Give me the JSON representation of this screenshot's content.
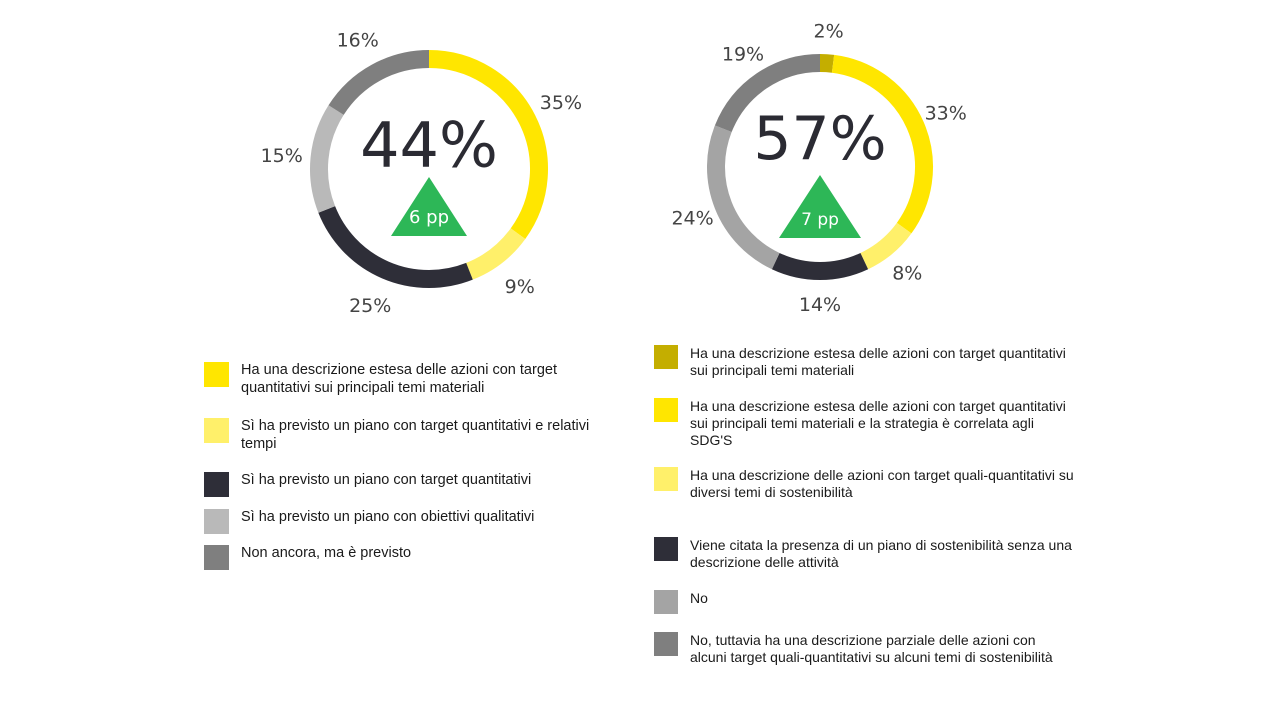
{
  "colors": {
    "olive": "#C4AE00",
    "yellow": "#FFE600",
    "light_yellow": "#FFF06A",
    "dark": "#2E2E38",
    "light_gray": "#B9B9B9",
    "mid_gray": "#A4A4A4",
    "gray": "#7F7F7F",
    "green": "#2DB757",
    "text": "#333333"
  },
  "chart_data": [
    {
      "type": "pie",
      "center_label": "44%",
      "delta_label": "6 pp",
      "delta_direction": "up",
      "slices": [
        {
          "label": "Ha una descrizione estesa delle azioni con target quantitativi sui principali temi materiali",
          "value": 35,
          "value_label": "35%",
          "color": "#FFE600"
        },
        {
          "label": "Sì ha previsto un piano con target quantitativi e relativi tempi",
          "value": 9,
          "value_label": "9%",
          "color": "#FFF06A"
        },
        {
          "label": "Sì ha previsto un piano con target quantitativi",
          "value": 25,
          "value_label": "25%",
          "color": "#2E2E38"
        },
        {
          "label": "Sì ha previsto un piano con obiettivi qualitativi",
          "value": 15,
          "value_label": "15%",
          "color": "#B9B9B9"
        },
        {
          "label": "Non ancora, ma è previsto",
          "value": 16,
          "value_label": "16%",
          "color": "#7F7F7F"
        }
      ]
    },
    {
      "type": "pie",
      "center_label": "57%",
      "delta_label": "7 pp",
      "delta_direction": "up",
      "slices": [
        {
          "label": "Ha una descrizione estesa delle azioni con target quantitativi sui principali temi materiali",
          "value": 2,
          "value_label": "2%",
          "color": "#C4AE00"
        },
        {
          "label": "Ha una descrizione estesa delle azioni con target quantitativi sui principali temi materiali e la strategia è correlata agli SDG'S",
          "value": 33,
          "value_label": "33%",
          "color": "#FFE600"
        },
        {
          "label": "Ha una descrizione delle azioni con target quali-quantitativi su diversi temi di sostenibilità",
          "value": 8,
          "value_label": "8%",
          "color": "#FFF06A"
        },
        {
          "label": "Viene citata la presenza di un piano di sostenibilità senza una descrizione delle attività",
          "value": 14,
          "value_label": "14%",
          "color": "#2E2E38"
        },
        {
          "label": "No",
          "value": 24,
          "value_label": "24%",
          "color": "#A4A4A4"
        },
        {
          "label": "No, tuttavia ha una descrizione parziale delle azioni con alcuni target quali-quantitativi su alcuni temi di sostenibilità",
          "value": 19,
          "value_label": "19%",
          "color": "#7F7F7F"
        }
      ]
    }
  ],
  "legend_left": [
    {
      "label": "Ha una descrizione estesa delle azioni con target quantitativi sui principali temi materiali",
      "color": "#FFE600"
    },
    {
      "label": "Sì ha previsto un piano con target quantitativi e relativi tempi",
      "color": "#FFF06A"
    },
    {
      "label": "Sì ha previsto un piano con target quantitativi",
      "color": "#2E2E38"
    },
    {
      "label": "Sì ha previsto un piano con obiettivi qualitativi",
      "color": "#B9B9B9"
    },
    {
      "label": "Non ancora, ma è previsto",
      "color": "#7F7F7F"
    }
  ],
  "legend_right": [
    {
      "label": "Ha una descrizione estesa delle azioni con target quantitativi sui principali temi materiali",
      "color": "#C4AE00"
    },
    {
      "label": "Ha una descrizione estesa delle azioni con target quantitativi sui principali temi materiali e la strategia è correlata agli SDG'S",
      "color": "#FFE600"
    },
    {
      "label": "Ha una descrizione delle azioni con target quali-quantitativi su diversi temi di sostenibilità",
      "color": "#FFF06A"
    },
    {
      "label": "Viene citata la presenza di un piano di sostenibilità senza una descrizione delle attività",
      "color": "#2E2E38"
    },
    {
      "label": "No",
      "color": "#A4A4A4"
    },
    {
      "label": "No, tuttavia ha una descrizione parziale delle azioni con alcuni target quali-quantitativi su alcuni temi di sostenibilità",
      "color": "#7F7F7F"
    }
  ]
}
